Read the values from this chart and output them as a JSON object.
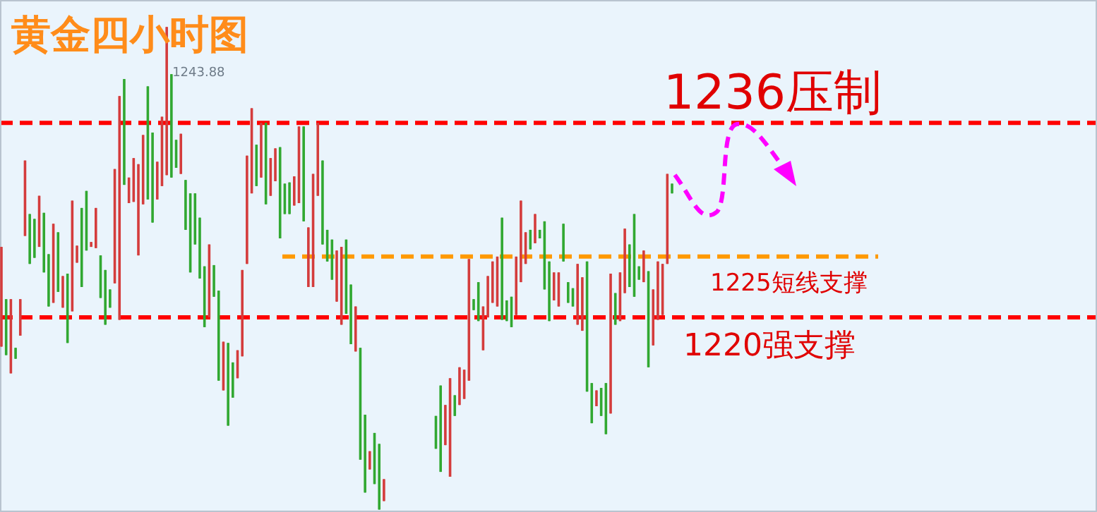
{
  "chart_data": {
    "type": "candlestick",
    "title": "黄金四小时图",
    "ylim": [
      1204,
      1246.1
    ],
    "categories": [
      null,
      null,
      null,
      null,
      null,
      null,
      null,
      null,
      null,
      null,
      null,
      null,
      null,
      null,
      null,
      null,
      null,
      null,
      null,
      null,
      null,
      null,
      null,
      null,
      null,
      null,
      null,
      null,
      null,
      null,
      null,
      null,
      null,
      null,
      null,
      null,
      null,
      null,
      null,
      null,
      null,
      null,
      null,
      null,
      null,
      null,
      null,
      null,
      null,
      null,
      null,
      null,
      null,
      null,
      null,
      null,
      null,
      null,
      null,
      null,
      null,
      null,
      null,
      null,
      null,
      null,
      null,
      null,
      null,
      null,
      null,
      null,
      null,
      null,
      null,
      null,
      null,
      null,
      null,
      null,
      null,
      null,
      null,
      null,
      null,
      null,
      null,
      null,
      null,
      null,
      null,
      null,
      null,
      null,
      null,
      null,
      null,
      null,
      null,
      null,
      null,
      null,
      null,
      null,
      null,
      null,
      null,
      null,
      null,
      null,
      null,
      null,
      null,
      null,
      null,
      null,
      null,
      null,
      null,
      null,
      null,
      null,
      null,
      null,
      null,
      null,
      null,
      null,
      null,
      null,
      null,
      null,
      null,
      null,
      null,
      null,
      null,
      null,
      null,
      null,
      null,
      null,
      null
    ],
    "ohlc": [
      [
        1217.6,
        1225.8,
        1217.6,
        1225.8
      ],
      [
        1221.5,
        1221.5,
        1216.9,
        1216.9
      ],
      [
        1215.4,
        1221.5,
        1215.4,
        1221.5
      ],
      [
        1217.5,
        1217.5,
        1216.6,
        1216.6
      ],
      [
        1218.5,
        1221.5,
        1218.5,
        1221.5
      ],
      [
        1226.7,
        1232.9,
        1226.7,
        1232.9
      ],
      [
        1228.5,
        1228.5,
        1224.4,
        1224.4
      ],
      [
        1228.1,
        1228.1,
        1224.9,
        1224.9
      ],
      [
        1225.8,
        1230.0,
        1225.8,
        1230.0
      ],
      [
        1228.6,
        1228.6,
        1223.7,
        1223.7
      ],
      [
        1225.2,
        1225.2,
        1220.9,
        1220.9
      ],
      [
        1221.2,
        1227.7,
        1221.2,
        1227.7
      ],
      [
        1227.0,
        1227.0,
        1222.1,
        1222.1
      ],
      [
        1220.8,
        1223.4,
        1220.8,
        1223.4
      ],
      [
        1223.6,
        1223.6,
        1217.9,
        1217.9
      ],
      [
        1220.5,
        1229.6,
        1220.5,
        1229.6
      ],
      [
        1224.5,
        1225.9,
        1224.5,
        1225.9
      ],
      [
        1229.0,
        1229.0,
        1222.5,
        1222.5
      ],
      [
        1230.4,
        1230.4,
        1225.5,
        1225.5
      ],
      [
        1225.8,
        1226.2,
        1225.8,
        1226.2
      ],
      [
        1225.7,
        1229.0,
        1225.7,
        1229.0
      ],
      [
        1225.1,
        1225.1,
        1221.6,
        1221.6
      ],
      [
        1223.9,
        1223.9,
        1219.4,
        1219.4
      ],
      [
        1222.3,
        1222.3,
        1220.8,
        1220.8
      ],
      [
        1222.8,
        1232.2,
        1222.8,
        1232.2
      ],
      [
        1219.8,
        1238.2,
        1219.8,
        1238.2
      ],
      [
        1239.6,
        1239.6,
        1230.9,
        1230.9
      ],
      [
        1229.4,
        1231.5,
        1229.4,
        1231.5
      ],
      [
        1229.5,
        1233.1,
        1229.5,
        1233.1
      ],
      [
        1225.1,
        1232.6,
        1225.1,
        1232.6
      ],
      [
        1229.3,
        1235.0,
        1229.3,
        1235.0
      ],
      [
        1239.0,
        1239.0,
        1229.7,
        1229.7
      ],
      [
        1235.2,
        1235.2,
        1227.8,
        1227.8
      ],
      [
        1229.7,
        1232.8,
        1229.7,
        1232.8
      ],
      [
        1230.8,
        1236.5,
        1230.8,
        1236.5
      ],
      [
        1231.7,
        1243.88,
        1231.7,
        1243.88
      ],
      [
        1240.0,
        1240.0,
        1231.5,
        1231.5
      ],
      [
        1234.6,
        1234.6,
        1232.3,
        1232.3
      ],
      [
        1231.8,
        1235.1,
        1231.8,
        1235.1
      ],
      [
        1231.3,
        1231.3,
        1227.2,
        1227.2
      ],
      [
        1230.2,
        1230.2,
        1223.7,
        1223.7
      ],
      [
        1230.2,
        1230.2,
        1226.0,
        1226.0
      ],
      [
        1228.2,
        1228.2,
        1223.2,
        1223.2
      ],
      [
        1224.2,
        1224.2,
        1219.2,
        1219.2
      ],
      [
        1220.0,
        1226.0,
        1220.0,
        1226.0
      ],
      [
        1224.3,
        1224.3,
        1221.7,
        1221.7
      ],
      [
        1222.2,
        1222.2,
        1214.8,
        1214.8
      ],
      [
        1214.0,
        1218.0,
        1214.0,
        1218.0
      ],
      [
        1217.9,
        1217.9,
        1211.1,
        1211.1
      ],
      [
        1216.3,
        1216.3,
        1213.4,
        1213.4
      ],
      [
        1215.0,
        1217.3,
        1215.0,
        1217.3
      ],
      [
        1216.8,
        1223.9,
        1216.8,
        1223.9
      ],
      [
        1224.4,
        1233.3,
        1224.4,
        1233.3
      ],
      [
        1230.2,
        1237.2,
        1230.2,
        1237.2
      ],
      [
        1234.2,
        1234.2,
        1230.8,
        1230.8
      ],
      [
        1231.5,
        1236.0,
        1231.5,
        1236.0
      ],
      [
        1236.0,
        1236.0,
        1229.3,
        1229.3
      ],
      [
        1230.0,
        1233.1,
        1230.0,
        1233.1
      ],
      [
        1231.2,
        1233.9,
        1231.2,
        1233.9
      ],
      [
        1234.0,
        1234.0,
        1226.5,
        1226.5
      ],
      [
        1231.0,
        1231.0,
        1228.5,
        1228.5
      ],
      [
        1231.1,
        1231.1,
        1228.5,
        1228.5
      ],
      [
        1229.2,
        1231.6,
        1229.2,
        1231.6
      ],
      [
        1229.4,
        1235.7,
        1229.4,
        1235.7
      ],
      [
        1235.7,
        1235.7,
        1227.9,
        1227.9
      ],
      [
        1222.5,
        1227.4,
        1222.5,
        1227.4
      ],
      [
        1222.5,
        1231.8,
        1222.5,
        1231.8
      ],
      [
        1230.0,
        1236.0,
        1230.0,
        1236.0
      ],
      [
        1232.9,
        1232.9,
        1226.0,
        1226.0
      ],
      [
        1227.2,
        1227.2,
        1224.6,
        1224.6
      ],
      [
        1226.4,
        1226.4,
        1223.1,
        1223.1
      ],
      [
        1221.3,
        1225.5,
        1221.3,
        1225.5
      ],
      [
        1219.4,
        1225.8,
        1219.4,
        1225.8
      ],
      [
        1226.4,
        1226.4,
        1220.3,
        1220.3
      ],
      [
        1222.7,
        1222.7,
        1217.8,
        1217.8
      ],
      [
        1217.2,
        1220.9,
        1217.2,
        1220.9
      ],
      [
        1217.5,
        1217.5,
        1208.3,
        1208.3
      ],
      [
        1212.0,
        1212.0,
        1205.6,
        1205.6
      ],
      [
        1207.5,
        1209.0,
        1207.5,
        1209.0
      ],
      [
        1210.5,
        1210.5,
        1206.3,
        1206.3
      ],
      [
        1209.6,
        1209.6,
        1204.2,
        1204.2
      ],
      [
        1204.9,
        1206.7,
        1204.9,
        1206.7
      ],
      null,
      null,
      null,
      null,
      null,
      null,
      null,
      null,
      null,
      null,
      [
        1211.9,
        1211.9,
        1209.2,
        1209.2
      ],
      [
        1214.4,
        1214.4,
        1207.3,
        1207.3
      ],
      [
        1209.5,
        1212.8,
        1209.5,
        1212.8
      ],
      [
        1206.9,
        1215.0,
        1206.9,
        1215.0
      ],
      [
        1213.6,
        1213.6,
        1211.9,
        1211.9
      ],
      [
        1212.8,
        1215.9,
        1212.8,
        1215.9
      ],
      [
        1213.3,
        1215.7,
        1213.3,
        1215.7
      ],
      [
        1214.8,
        1224.8,
        1214.8,
        1224.8
      ],
      [
        1221.5,
        1221.5,
        1220.6,
        1220.6
      ],
      [
        1222.9,
        1222.9,
        1219.7,
        1219.7
      ],
      [
        1217.3,
        1220.9,
        1217.3,
        1220.9
      ],
      [
        1220.0,
        1223.4,
        1220.0,
        1223.4
      ],
      [
        1221.2,
        1224.6,
        1221.2,
        1224.6
      ],
      [
        1220.9,
        1225.0,
        1220.9,
        1225.0
      ],
      [
        1228.2,
        1228.2,
        1219.8,
        1219.8
      ],
      [
        1221.4,
        1221.4,
        1219.7,
        1219.7
      ],
      [
        1221.7,
        1221.7,
        1219.2,
        1219.2
      ],
      [
        1220.2,
        1225.0,
        1220.2,
        1225.0
      ],
      [
        1222.9,
        1229.6,
        1222.9,
        1229.6
      ],
      [
        1224.4,
        1227.0,
        1224.4,
        1227.0
      ],
      [
        1227.2,
        1227.2,
        1225.6,
        1225.6
      ],
      [
        1226.1,
        1228.5,
        1226.1,
        1228.5
      ],
      [
        1227.2,
        1227.2,
        1226.5,
        1226.5
      ],
      [
        1227.9,
        1227.9,
        1222.3,
        1222.3
      ],
      [
        1224.6,
        1224.6,
        1219.7,
        1219.7
      ],
      [
        1221.4,
        1223.7,
        1221.4,
        1223.7
      ],
      [
        1220.9,
        1223.7,
        1220.9,
        1223.7
      ],
      [
        1227.7,
        1227.7,
        1224.6,
        1224.6
      ],
      [
        1222.9,
        1222.9,
        1221.2,
        1221.2
      ],
      [
        1222.4,
        1222.4,
        1220.9,
        1220.9
      ],
      [
        1219.4,
        1224.4,
        1219.4,
        1224.4
      ],
      [
        1218.9,
        1223.3,
        1218.9,
        1223.3
      ],
      [
        1224.6,
        1224.6,
        1213.9,
        1213.9
      ],
      [
        1214.6,
        1214.6,
        1211.3,
        1211.3
      ],
      [
        1212.7,
        1214.0,
        1212.7,
        1214.0
      ],
      [
        1214.2,
        1214.2,
        1211.9,
        1211.9
      ],
      [
        1214.6,
        1214.6,
        1210.4,
        1210.4
      ],
      [
        1212.1,
        1223.6,
        1212.1,
        1223.6
      ],
      [
        1222.0,
        1222.0,
        1219.4,
        1219.4
      ],
      [
        1219.7,
        1223.7,
        1219.7,
        1223.7
      ],
      [
        1222.0,
        1227.3,
        1222.0,
        1227.3
      ],
      [
        1226.0,
        1226.0,
        1222.5,
        1222.5
      ],
      [
        1228.5,
        1228.5,
        1221.7,
        1221.7
      ],
      [
        1224.2,
        1224.2,
        1223.1,
        1223.1
      ],
      [
        1222.9,
        1225.5,
        1222.9,
        1225.5
      ],
      [
        1223.8,
        1223.8,
        1215.9,
        1215.9
      ],
      [
        1217.7,
        1222.3,
        1217.7,
        1222.3
      ],
      [
        1219.8,
        1224.6,
        1219.8,
        1224.6
      ],
      [
        1220.2,
        1224.4,
        1220.2,
        1224.4
      ],
      [
        1224.4,
        1231.8,
        1224.4,
        1231.8
      ],
      [
        1231.0,
        1231.0,
        1230.2,
        1230.2
      ]
    ],
    "colors": [
      "#d43c3c",
      "#31a831",
      "#d43c3c",
      "#31a831",
      "#d43c3c",
      "#d43c3c",
      "#31a831",
      "#31a831",
      "#d43c3c",
      "#31a831",
      "#31a831",
      "#d43c3c",
      "#31a831",
      "#d43c3c",
      "#31a831",
      "#d43c3c",
      "#d43c3c",
      "#31a831",
      "#31a831",
      "#d43c3c",
      "#d43c3c",
      "#31a831",
      "#31a831",
      "#31a831",
      "#d43c3c",
      "#d43c3c",
      "#31a831",
      "#d43c3c",
      "#d43c3c",
      "#d43c3c",
      "#d43c3c",
      "#31a831",
      "#31a831",
      "#d43c3c",
      "#d43c3c",
      "#d43c3c",
      "#31a831",
      "#31a831",
      "#d43c3c",
      "#31a831",
      "#31a831",
      "#31a831",
      "#31a831",
      "#31a831",
      "#d43c3c",
      "#31a831",
      "#31a831",
      "#d43c3c",
      "#31a831",
      "#31a831",
      "#d43c3c",
      "#d43c3c",
      "#d43c3c",
      "#d43c3c",
      "#31a831",
      "#d43c3c",
      "#31a831",
      "#d43c3c",
      "#d43c3c",
      "#31a831",
      "#31a831",
      "#31a831",
      "#d43c3c",
      "#d43c3c",
      "#31a831",
      "#d43c3c",
      "#d43c3c",
      "#d43c3c",
      "#31a831",
      "#31a831",
      "#31a831",
      "#d43c3c",
      "#d43c3c",
      "#31a831",
      "#31a831",
      "#d43c3c",
      "#31a831",
      "#31a831",
      "#d43c3c",
      "#31a831",
      "#31a831",
      "#d43c3c",
      null,
      null,
      null,
      null,
      null,
      null,
      null,
      null,
      null,
      null,
      "#31a831",
      "#31a831",
      "#d43c3c",
      "#d43c3c",
      "#31a831",
      "#d43c3c",
      "#d43c3c",
      "#d43c3c",
      "#31a831",
      "#31a831",
      "#d43c3c",
      "#d43c3c",
      "#d43c3c",
      "#d43c3c",
      "#31a831",
      "#31a831",
      "#31a831",
      "#d43c3c",
      "#d43c3c",
      "#d43c3c",
      "#31a831",
      "#d43c3c",
      "#31a831",
      "#31a831",
      "#31a831",
      "#d43c3c",
      "#d43c3c",
      "#31a831",
      "#31a831",
      "#31a831",
      "#d43c3c",
      "#d43c3c",
      "#31a831",
      "#31a831",
      "#d43c3c",
      "#31a831",
      "#31a831",
      "#d43c3c",
      "#31a831",
      "#d43c3c",
      "#d43c3c",
      "#31a831",
      "#31a831",
      "#31a831",
      "#d43c3c",
      "#31a831",
      "#d43c3c",
      "#d43c3c",
      "#d43c3c",
      "#d43c3c",
      "#31a831"
    ],
    "ref_lines": [
      {
        "axis": "y",
        "value": 1236,
        "label": "1236压制",
        "color": "#ff0000",
        "line_style": "dashed"
      },
      {
        "axis": "y",
        "value": 1225,
        "label": "1225短线支撑",
        "color": "#ff9900",
        "line_style": "dashed"
      },
      {
        "axis": "y",
        "value": 1220,
        "label": "1220强支撑",
        "color": "#ff0000",
        "line_style": "dashed"
      }
    ],
    "annotations": [
      "1243.88"
    ]
  }
}
